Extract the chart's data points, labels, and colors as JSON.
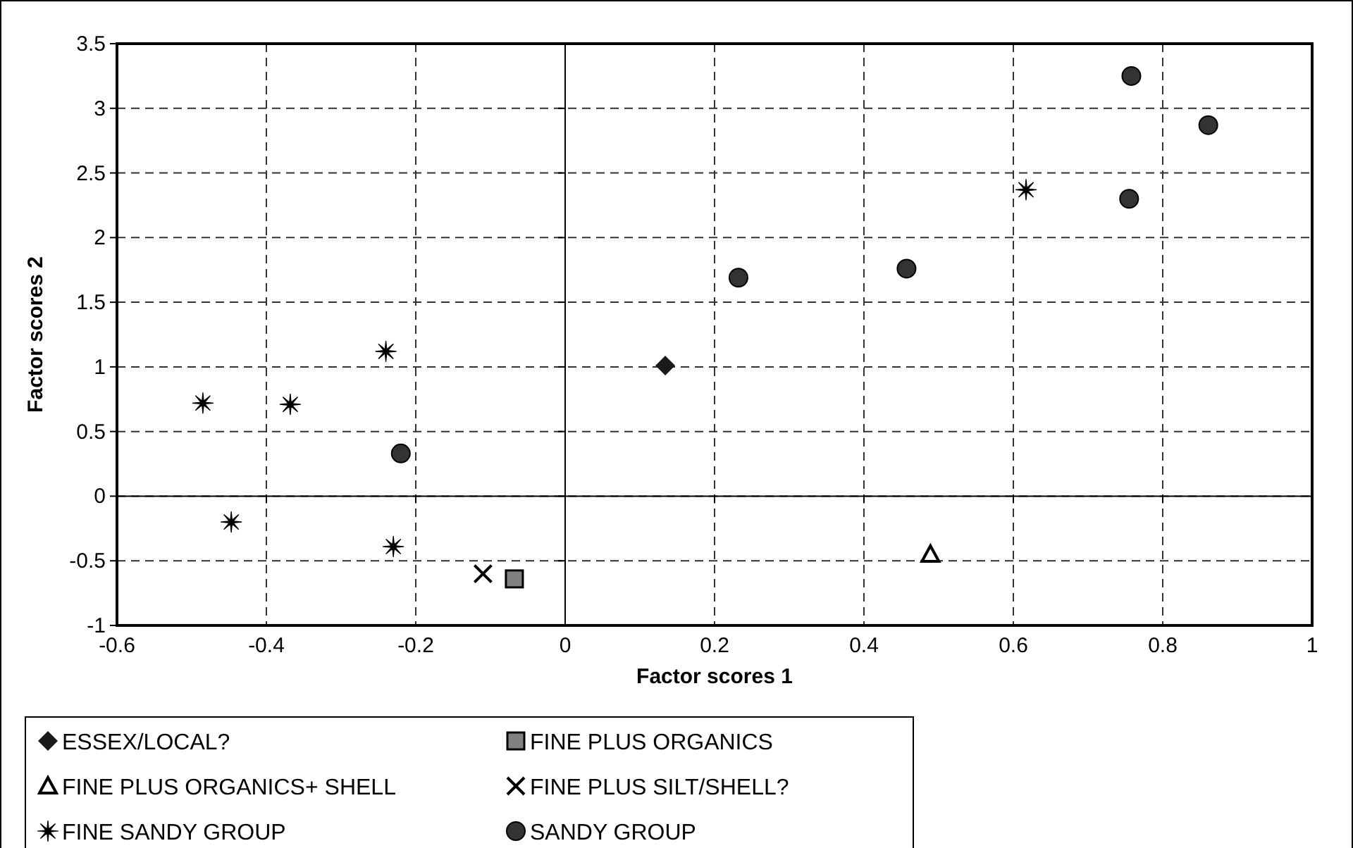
{
  "chart_data": {
    "type": "scatter",
    "xlabel": "Factor scores 1",
    "ylabel": "Factor scores 2",
    "xlim": [
      -0.6,
      1
    ],
    "xticks": [
      -0.6,
      -0.4,
      -0.2,
      0,
      0.2,
      0.4,
      0.6,
      0.8,
      1
    ],
    "ylim": [
      -1,
      3.5
    ],
    "yticks": [
      -1,
      -0.5,
      0,
      0.5,
      1,
      1.5,
      2,
      2.5,
      3,
      3.5
    ],
    "grid": true,
    "legend": "bottom left",
    "series": [
      {
        "name": "ESSEX/LOCAL?",
        "color": "#1a1a1a",
        "marker": "diamond",
        "x": [
          0.134
        ],
        "values": [
          1.01
        ]
      },
      {
        "name": "FINE PLUS ORGANICS",
        "color": "#808080",
        "marker": "square",
        "x": [
          -0.068
        ],
        "values": [
          -0.64
        ]
      },
      {
        "name": "FINE PLUS ORGANICS+ SHELL",
        "color": "#000000",
        "marker": "triangle",
        "x": [
          0.489
        ],
        "values": [
          -0.45
        ]
      },
      {
        "name": "FINE PLUS SILT/SHELL?",
        "color": "#000000",
        "marker": "cross",
        "x": [
          -0.11
        ],
        "values": [
          -0.6
        ]
      },
      {
        "name": "FINE SANDY GROUP",
        "color": "#000000",
        "marker": "star",
        "x": [
          -0.485,
          -0.368,
          -0.24,
          -0.447,
          -0.23,
          0.617
        ],
        "values": [
          0.72,
          0.71,
          1.12,
          -0.2,
          -0.39,
          2.37
        ]
      },
      {
        "name": "SANDY GROUP",
        "color": "#333333",
        "marker": "circle",
        "x": [
          -0.22,
          0.232,
          0.457,
          0.758,
          0.861,
          0.755
        ],
        "values": [
          0.33,
          1.69,
          1.76,
          3.25,
          2.87,
          2.3
        ]
      }
    ]
  }
}
